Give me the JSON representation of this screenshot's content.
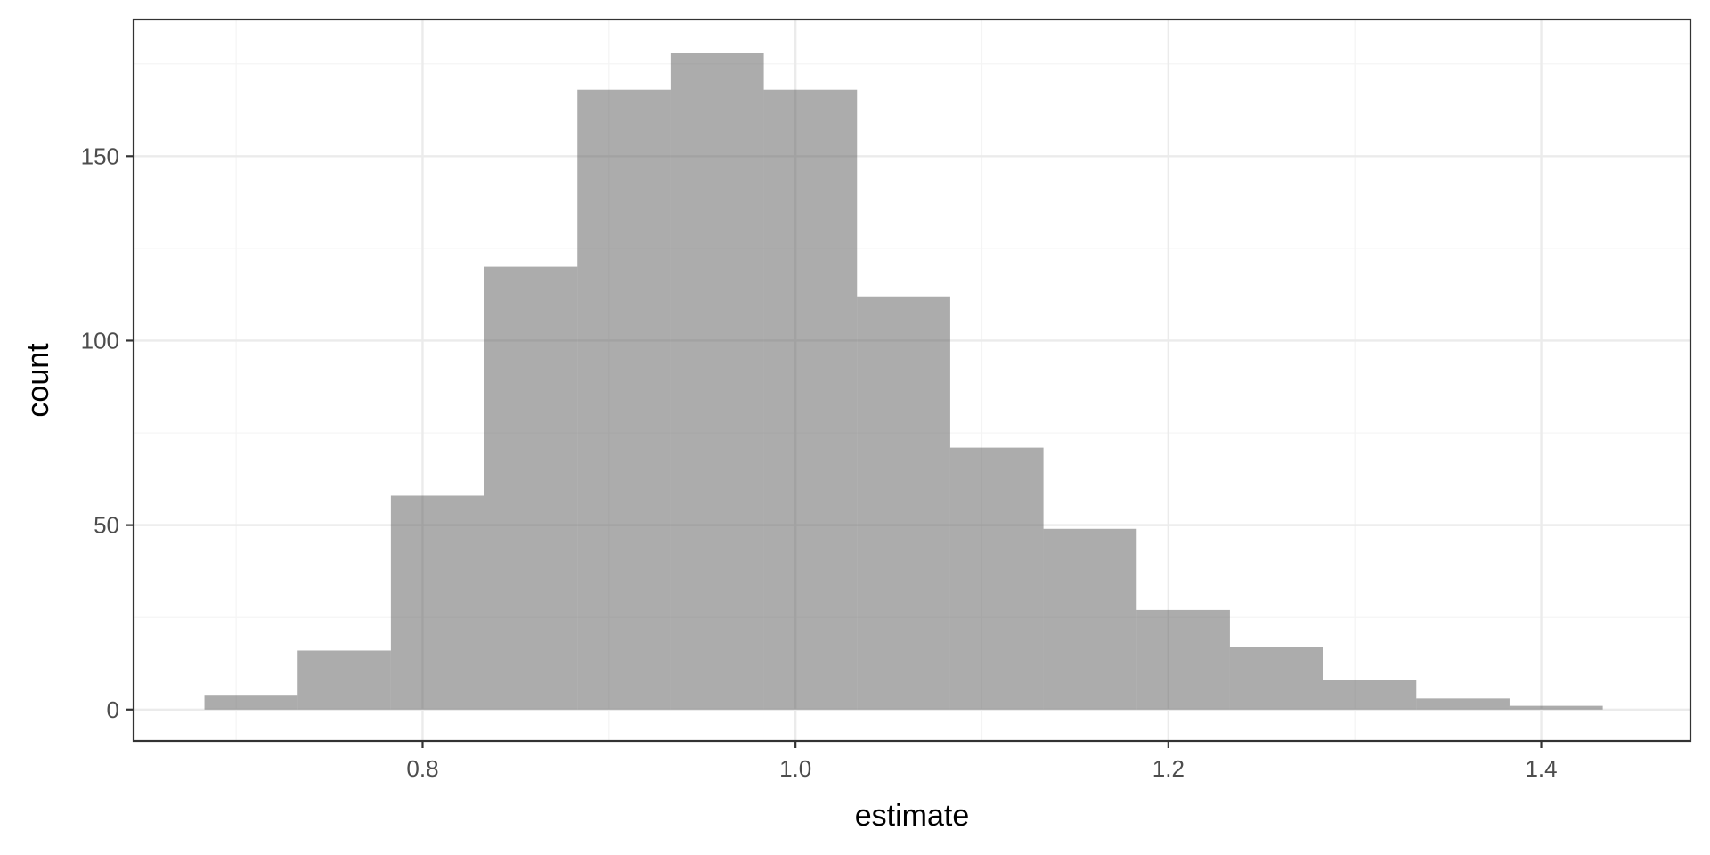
{
  "chart_data": {
    "type": "bar",
    "subtype": "histogram",
    "title": "",
    "xlabel": "estimate",
    "ylabel": "count",
    "xlim": [
      0.645,
      1.48
    ],
    "ylim": [
      -8.5,
      187
    ],
    "x_ticks": [
      0.8,
      1.0,
      1.2,
      1.4
    ],
    "x_tick_labels": [
      "0.8",
      "1.0",
      "1.2",
      "1.4"
    ],
    "y_ticks": [
      0,
      50,
      100,
      150
    ],
    "y_tick_labels": [
      "0",
      "50",
      "100",
      "150"
    ],
    "bin_width": 0.05,
    "bins": [
      {
        "start": 0.683,
        "end": 0.733,
        "count": 4
      },
      {
        "start": 0.733,
        "end": 0.783,
        "count": 16
      },
      {
        "start": 0.783,
        "end": 0.833,
        "count": 58
      },
      {
        "start": 0.833,
        "end": 0.883,
        "count": 120
      },
      {
        "start": 0.883,
        "end": 0.933,
        "count": 168
      },
      {
        "start": 0.933,
        "end": 0.983,
        "count": 178
      },
      {
        "start": 0.983,
        "end": 1.033,
        "count": 168
      },
      {
        "start": 1.033,
        "end": 1.083,
        "count": 112
      },
      {
        "start": 1.083,
        "end": 1.133,
        "count": 71
      },
      {
        "start": 1.133,
        "end": 1.183,
        "count": 49
      },
      {
        "start": 1.183,
        "end": 1.233,
        "count": 27
      },
      {
        "start": 1.233,
        "end": 1.283,
        "count": 17
      },
      {
        "start": 1.283,
        "end": 1.333,
        "count": 8
      },
      {
        "start": 1.333,
        "end": 1.383,
        "count": 3
      },
      {
        "start": 1.383,
        "end": 1.433,
        "count": 1
      }
    ],
    "grid": true,
    "legend": "none",
    "colors": {
      "bar_fill": "#595959",
      "bar_opacity": 0.5,
      "grid_major": "#ebebeb",
      "grid_minor": "#f4f4f4",
      "panel_border": "#333333",
      "tick_text": "#4d4d4d",
      "title_text": "#000000"
    }
  }
}
